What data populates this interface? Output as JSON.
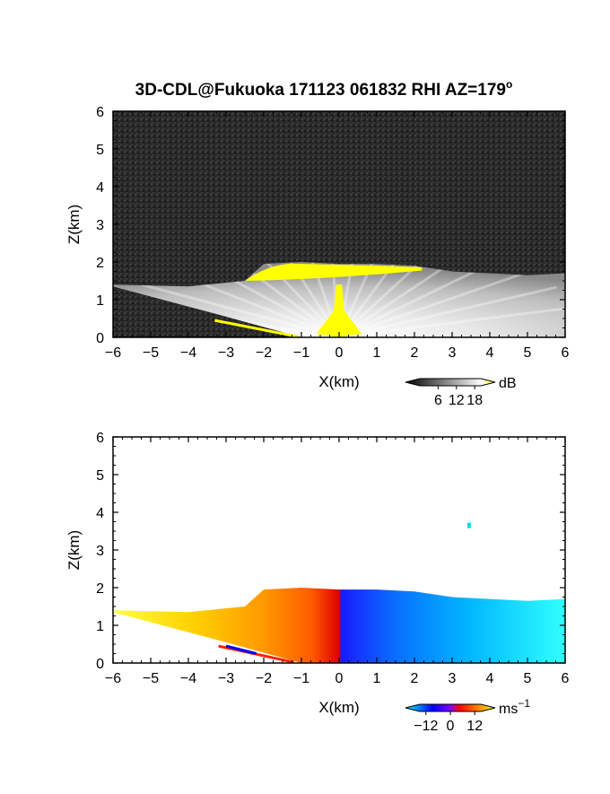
{
  "title": "3D-CDL@Fukuoka 171123 061832 RHI AZ=179",
  "title_superscript": "o",
  "chart_data": [
    {
      "type": "heatmap",
      "name": "backscatter",
      "title": "3D-CDL@Fukuoka 171123 061832 RHI AZ=179°",
      "xlabel": "X(km)",
      "ylabel": "Z(km)",
      "xlim": [
        -6,
        6
      ],
      "ylim": [
        0,
        6
      ],
      "x_ticks": [
        "-6",
        "-5",
        "-4",
        "-3",
        "-2",
        "-1",
        "0",
        "1",
        "2",
        "3",
        "4",
        "5",
        "6"
      ],
      "y_ticks": [
        "0",
        "1",
        "2",
        "3",
        "4",
        "5",
        "6"
      ],
      "colorbar": {
        "label": "dB",
        "ticks": [
          "6",
          "12",
          "18"
        ],
        "range": [
          0,
          20
        ],
        "colors": [
          "#000000",
          "#ffffff",
          "#ffff00"
        ]
      },
      "layer_top_km": [
        [
          -6.0,
          1.4
        ],
        [
          -4.0,
          1.35
        ],
        [
          -2.5,
          1.5
        ],
        [
          -2.0,
          1.95
        ],
        [
          -1.0,
          2.0
        ],
        [
          0.0,
          1.95
        ],
        [
          1.0,
          1.95
        ],
        [
          2.0,
          1.9
        ],
        [
          3.0,
          1.75
        ],
        [
          4.0,
          1.7
        ],
        [
          5.0,
          1.65
        ],
        [
          6.0,
          1.7
        ]
      ],
      "layer_bottom_km": [
        [
          -6.0,
          1.35
        ],
        [
          -3.0,
          0.55
        ],
        [
          -1.0,
          0.0
        ],
        [
          0.0,
          0.0
        ],
        [
          6.0,
          0.0
        ]
      ],
      "background": "noise (dark gray)",
      "saturated_regions": [
        {
          "description": "cloud top band",
          "x": [
            -2.5,
            2.2
          ],
          "z": [
            1.5,
            2.0
          ],
          "color": "#ffff00"
        },
        {
          "description": "near-lidar column",
          "x": [
            -0.6,
            0.6
          ],
          "z": [
            0.0,
            1.4
          ],
          "color": "#ffff00"
        }
      ]
    },
    {
      "type": "heatmap",
      "name": "doppler_velocity",
      "title": "",
      "xlabel": "X(km)",
      "ylabel": "Z(km)",
      "xlim": [
        -6,
        6
      ],
      "ylim": [
        0,
        6
      ],
      "x_ticks": [
        "-6",
        "-5",
        "-4",
        "-3",
        "-2",
        "-1",
        "0",
        "1",
        "2",
        "3",
        "4",
        "5",
        "6"
      ],
      "y_ticks": [
        "0",
        "1",
        "2",
        "3",
        "4",
        "5",
        "6"
      ],
      "colorbar": {
        "label": "ms",
        "label_superscript": "−1",
        "ticks": [
          "−12",
          "0",
          "12"
        ],
        "range": [
          -15,
          15
        ],
        "colors": [
          "#00ffff",
          "#0000ff",
          "#ff0000",
          "#ffff00"
        ]
      },
      "velocity_ms_at_x": [
        [
          -6.0,
          13
        ],
        [
          -5.0,
          12
        ],
        [
          -4.0,
          10
        ],
        [
          -3.0,
          8
        ],
        [
          -2.0,
          5
        ],
        [
          -1.0,
          3
        ],
        [
          -0.2,
          1
        ],
        [
          0.2,
          -1
        ],
        [
          1.0,
          -3
        ],
        [
          2.0,
          -5
        ],
        [
          3.0,
          -7
        ],
        [
          4.0,
          -9
        ],
        [
          5.0,
          -11
        ],
        [
          6.0,
          -13
        ]
      ],
      "isolated_point": {
        "x": 3.45,
        "z": 3.65,
        "velocity_ms": -13
      }
    }
  ]
}
